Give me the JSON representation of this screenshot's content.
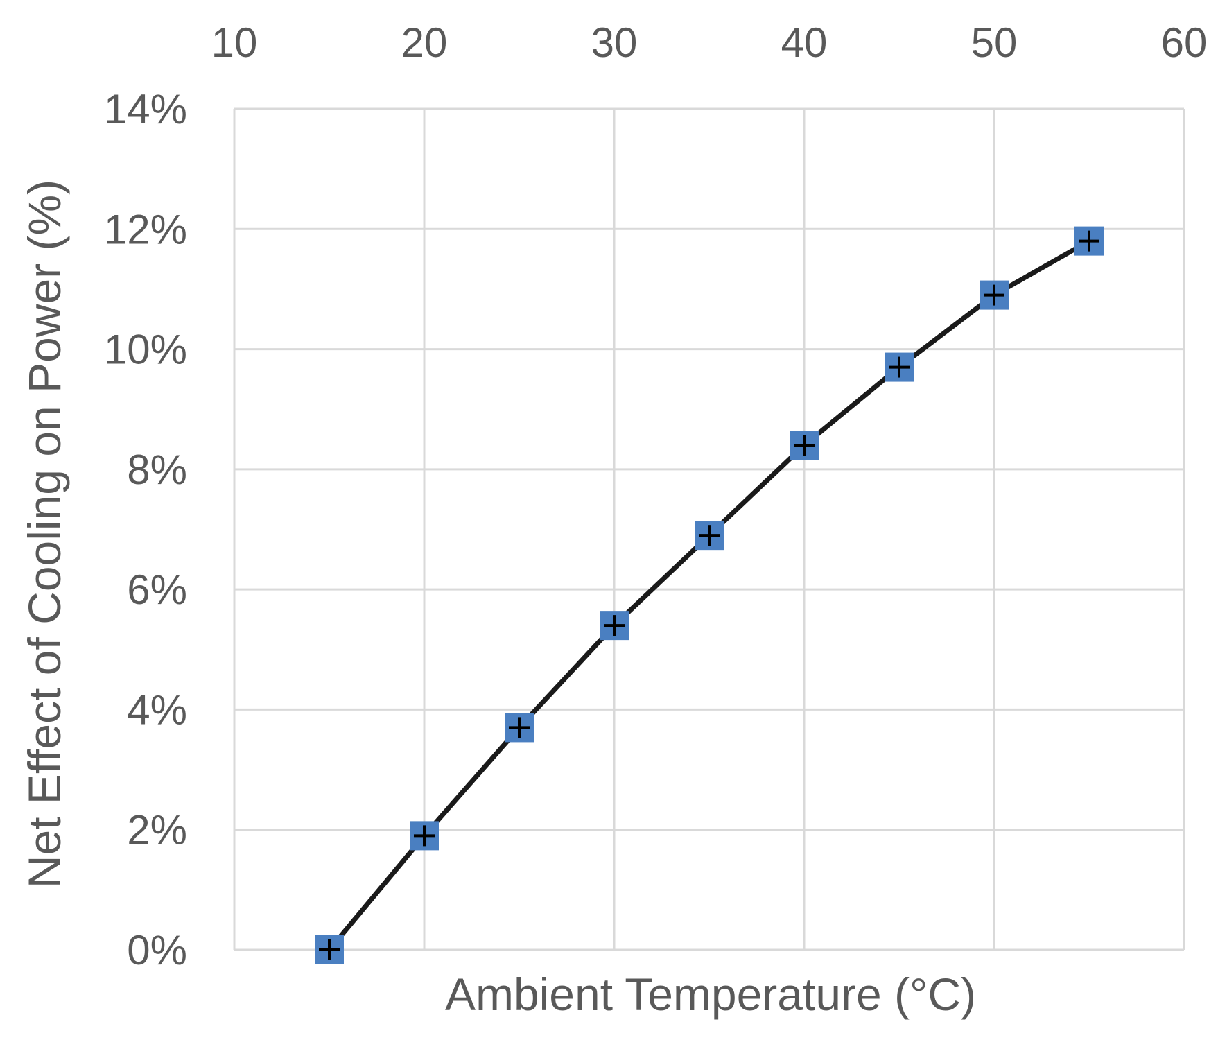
{
  "chart_data": {
    "type": "scatter",
    "title": "",
    "xlabel": "Ambient  Temperature (°C)",
    "ylabel": "Net Effect of Cooling on Power (%)",
    "x_axis_position": "top",
    "xlim": [
      10,
      60
    ],
    "ylim": [
      0,
      14
    ],
    "x_ticks": [
      10,
      20,
      30,
      40,
      50,
      60
    ],
    "x_tick_labels": [
      "10",
      "20",
      "30",
      "40",
      "50",
      "60"
    ],
    "y_ticks": [
      0,
      2,
      4,
      6,
      8,
      10,
      12,
      14
    ],
    "y_tick_labels": [
      "0%",
      "2%",
      "4%",
      "6%",
      "8%",
      "10%",
      "12%",
      "14%"
    ],
    "grid": true,
    "series": [
      {
        "marker": "square-with-cross",
        "line": "solid",
        "color": "#4a7fc1",
        "line_color": "#1a1a1a",
        "x": [
          15,
          20,
          25,
          30,
          35,
          40,
          45,
          50,
          55
        ],
        "y": [
          0.0,
          1.9,
          3.7,
          5.4,
          6.9,
          8.4,
          9.7,
          10.9,
          11.8
        ]
      }
    ]
  }
}
